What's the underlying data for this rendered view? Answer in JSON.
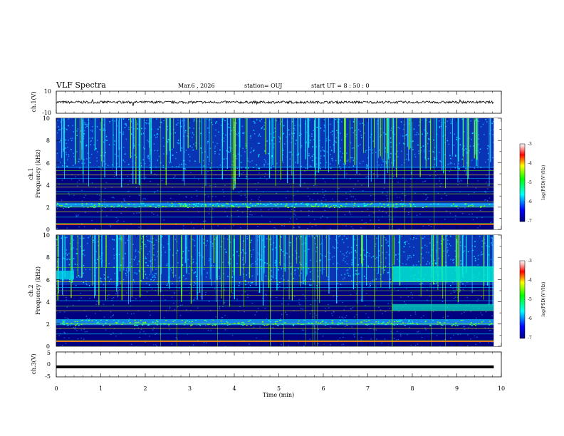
{
  "header": {
    "title": "VLF Spectra",
    "date": "Mar.6  , 2026",
    "station": "station= OUJ",
    "start": "start  UT  =   8  : 50 : 0"
  },
  "panels": {
    "ch1_wave_label": "ch.1(V)",
    "ch1_spec_label": "ch.1",
    "ch2_spec_label": "ch.2",
    "freq_label": "Frequency  (kHz)",
    "ch3_label": "ch.3(V)",
    "x_label": "Time  (min)",
    "cbar_label": "log(PSD)(V²/Hz)"
  },
  "colors": {
    "background": "#000080",
    "wave": "#000000"
  },
  "chart_data": [
    {
      "type": "line",
      "name": "ch1-waveform",
      "xlabel": "Time  (min)",
      "ylabel": "ch.1(V)",
      "xlim": [
        0,
        10
      ],
      "ylim": [
        -10,
        10
      ],
      "yticks": [
        "10",
        "-10"
      ],
      "baseline": 0,
      "x_end": 9.83
    },
    {
      "type": "heatmap",
      "name": "ch1-spectrogram",
      "xlabel": "Time  (min)",
      "ylabel": "Frequency  (kHz)",
      "xlim": [
        0,
        10
      ],
      "ylim": [
        0,
        10
      ],
      "yticks": [
        "0",
        "2",
        "4",
        "6",
        "8",
        "10"
      ],
      "colorbar": {
        "label": "log(PSD)(V²/Hz)",
        "ticks": [
          "-3",
          "-4",
          "-5",
          "-6",
          "-7"
        ],
        "range": [
          -7,
          -3
        ]
      },
      "lines_khz": [
        0.4,
        0.55,
        1.1,
        1.6,
        2.0,
        2.2,
        2.5,
        3.2,
        3.4,
        3.8,
        4.1,
        4.6,
        4.9,
        5.3,
        5.6
      ],
      "band_khz": [
        2.0,
        2.4
      ],
      "event_x": 7.55
    },
    {
      "type": "heatmap",
      "name": "ch2-spectrogram",
      "xlabel": "Time  (min)",
      "ylabel": "Frequency  (kHz)",
      "xlim": [
        0,
        10
      ],
      "ylim": [
        0,
        10
      ],
      "yticks": [
        "0",
        "2",
        "4",
        "6",
        "8",
        "10"
      ],
      "colorbar": {
        "label": "log(PSD)(V²/Hz)",
        "ticks": [
          "-3",
          "-4",
          "-5",
          "-6",
          "-7"
        ],
        "range": [
          -7,
          -3
        ]
      },
      "lines_khz": [
        0.4,
        0.55,
        1.1,
        1.6,
        2.0,
        2.4,
        3.2,
        3.6,
        4.1,
        4.6,
        5.0,
        5.3,
        5.8,
        7.1
      ],
      "band_khz": [
        1.9,
        2.4
      ],
      "event_x": 7.55
    },
    {
      "type": "line",
      "name": "ch3-waveform",
      "xlabel": "Time  (min)",
      "ylabel": "ch.3(V)",
      "xlim": [
        0,
        10
      ],
      "ylim": [
        -5,
        5
      ],
      "yticks": [
        "5",
        "0",
        "-5"
      ],
      "level": -1,
      "x_end": 9.83,
      "xticks": [
        "0",
        "1",
        "2",
        "3",
        "4",
        "5",
        "6",
        "7",
        "8",
        "9",
        "10"
      ]
    }
  ]
}
